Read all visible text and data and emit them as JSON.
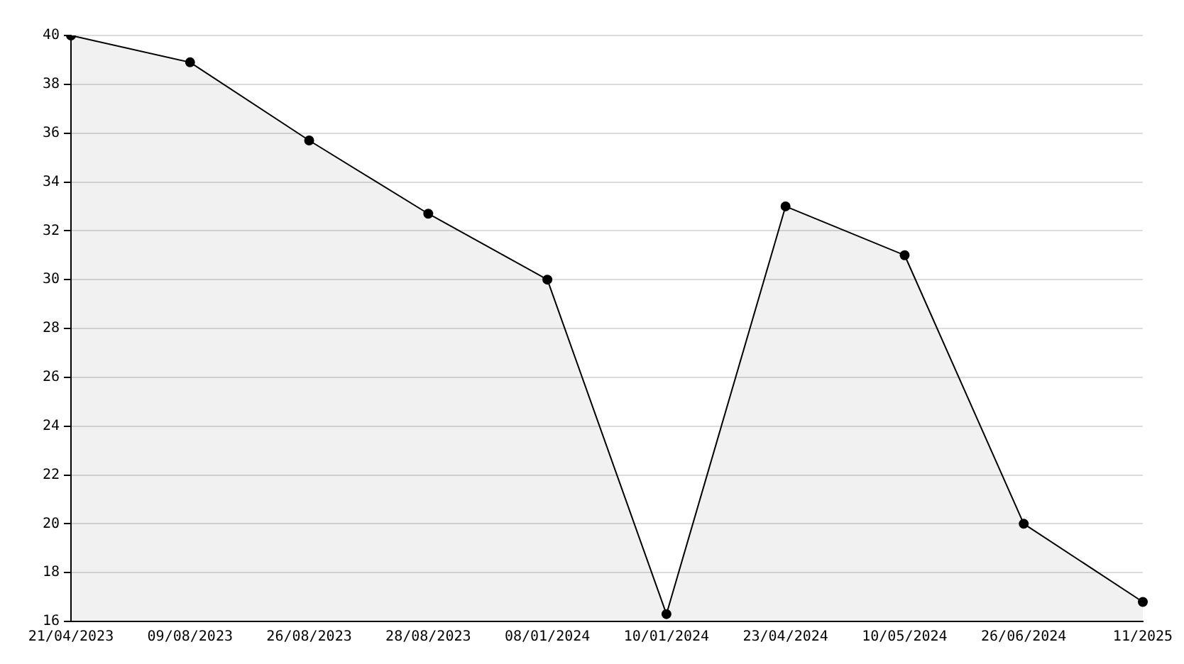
{
  "chart_data": {
    "type": "area",
    "categories": [
      "21/04/2023",
      "09/08/2023",
      "26/08/2023",
      "28/08/2023",
      "08/01/2024",
      "10/01/2024",
      "23/04/2024",
      "10/05/2024",
      "26/06/2024",
      "11/2025"
    ],
    "series": [
      {
        "color": "#000000",
        "values": [
          40,
          38.9,
          35.7,
          32.7,
          30,
          16.3,
          33,
          31,
          20,
          16.8
        ]
      }
    ],
    "ylim": [
      16,
      40
    ],
    "yticks": [
      16,
      18,
      20,
      22,
      24,
      26,
      28,
      30,
      32,
      34,
      36,
      38,
      40
    ],
    "grid": "y",
    "legend": false,
    "marker": "circle",
    "line_style": "solid"
  }
}
